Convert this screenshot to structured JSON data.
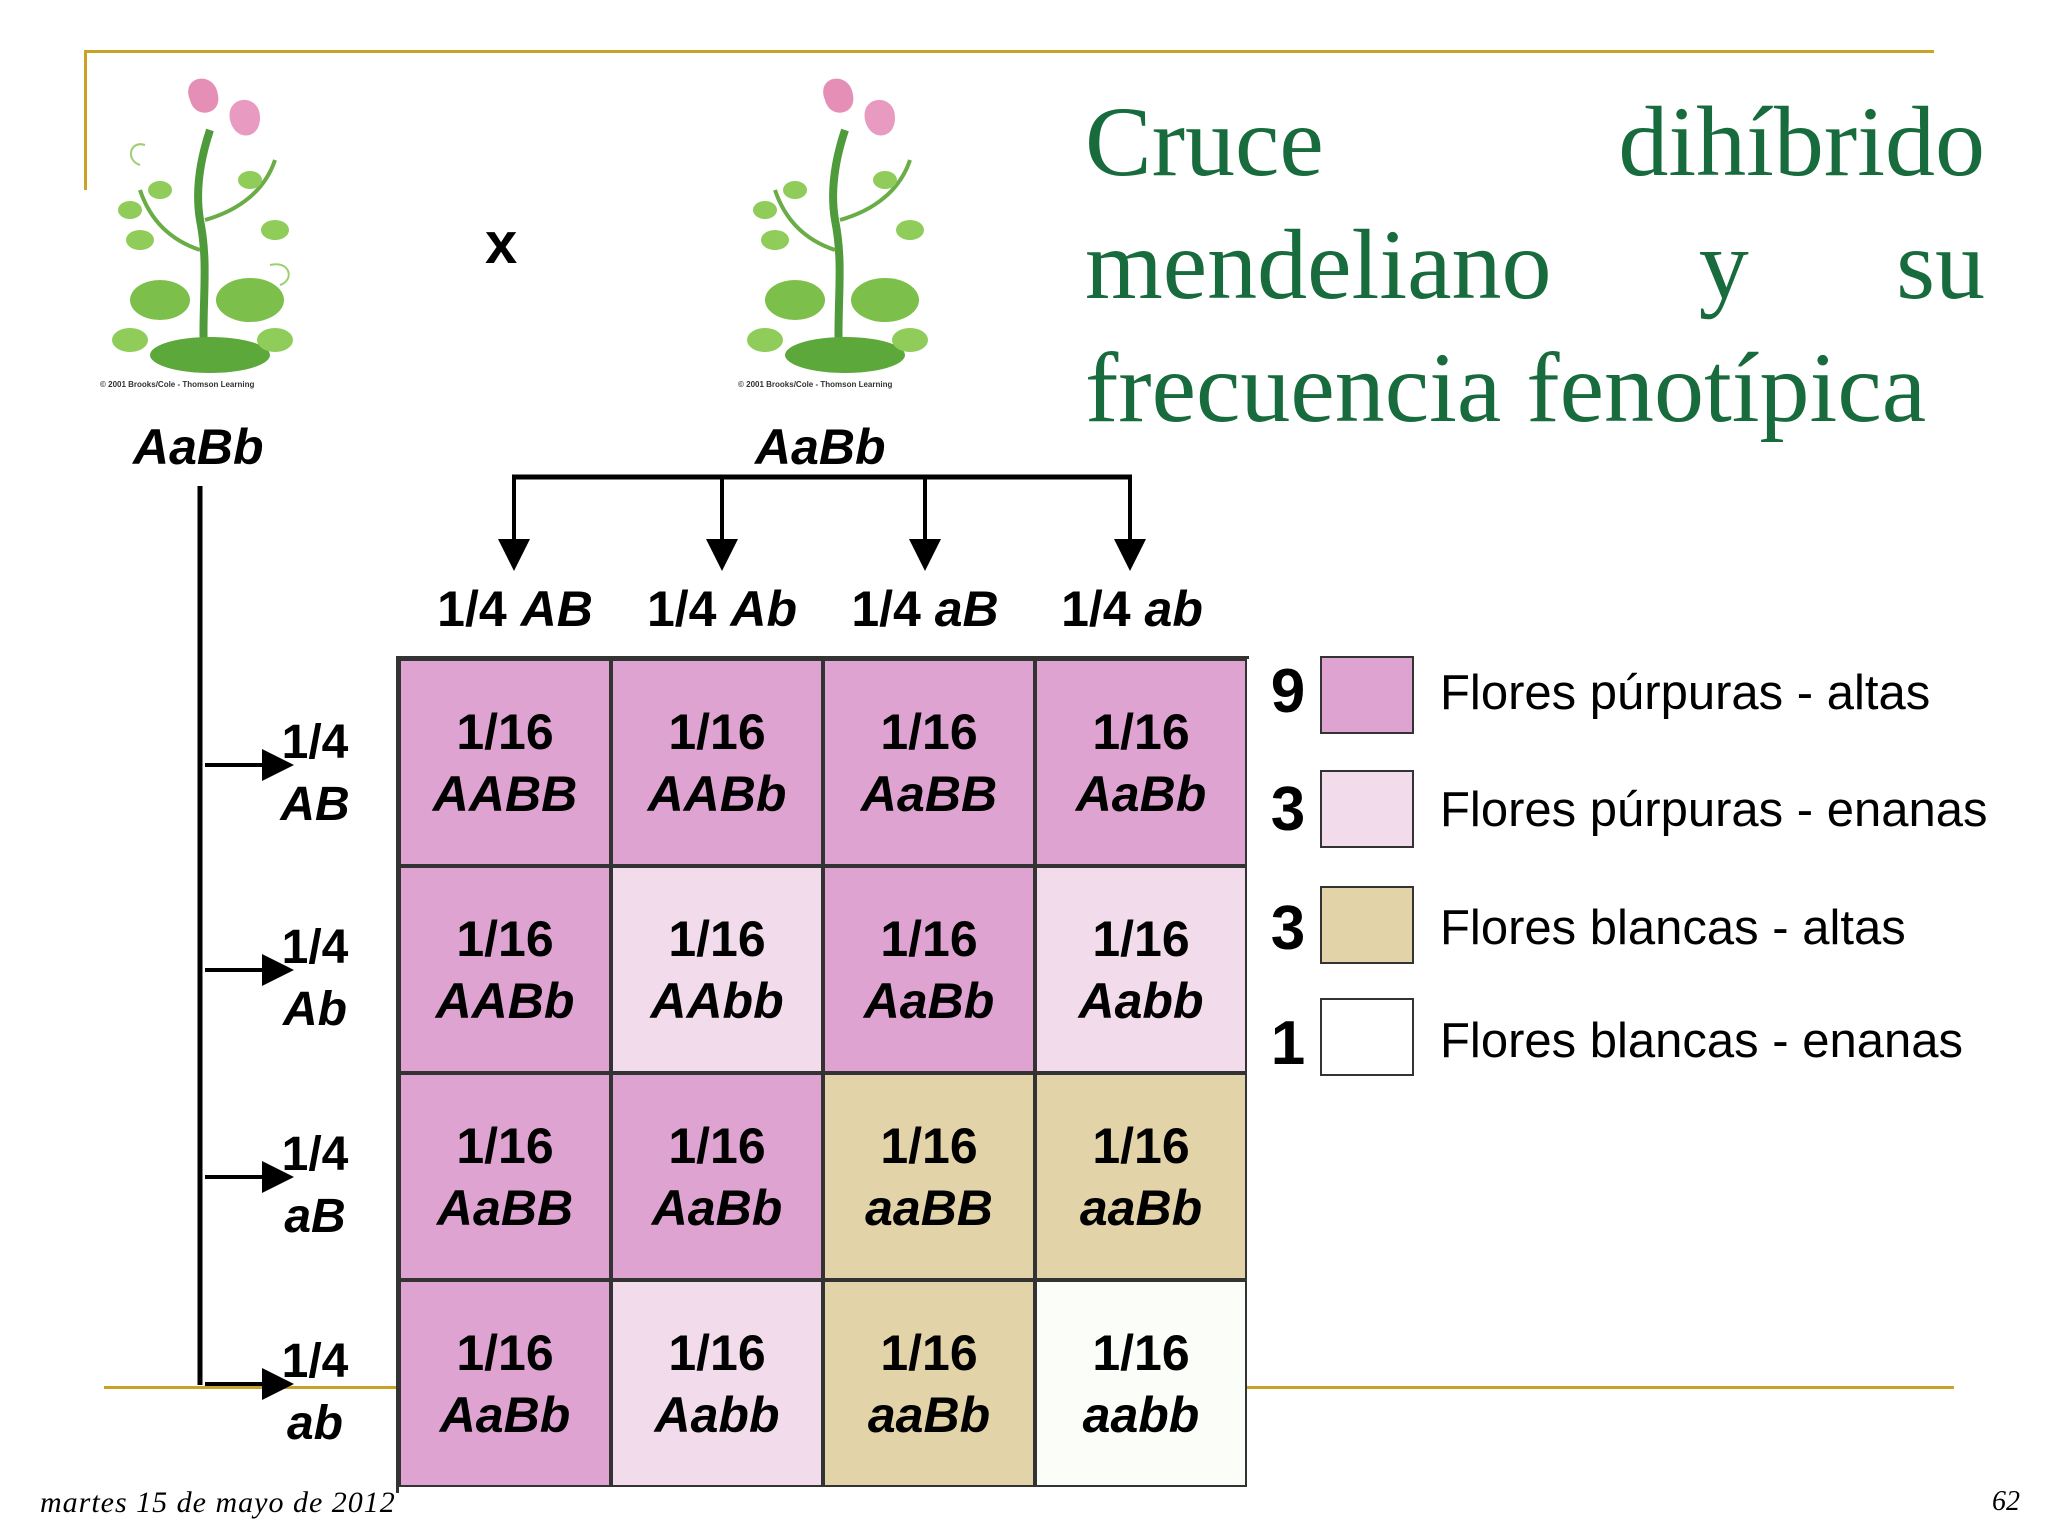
{
  "title": {
    "line1": [
      "Cruce",
      "dihíbrido"
    ],
    "line2": [
      "mendeliano",
      "y",
      "su"
    ],
    "line3": "frecuencia fenotípica"
  },
  "parents": {
    "left_genotype": "AaBb",
    "right_genotype": "AaBb",
    "cross_symbol": "x",
    "image_credit": "© 2001 Brooks/Cole - Thomson Learning"
  },
  "gametes": [
    {
      "freq": "1/4",
      "allele": "AB"
    },
    {
      "freq": "1/4",
      "allele": "Ab"
    },
    {
      "freq": "1/4",
      "allele": "aB"
    },
    {
      "freq": "1/4",
      "allele": "ab"
    }
  ],
  "punnett": [
    [
      {
        "freq": "1/16",
        "genotype": "AABB",
        "phenotype": "purple-tall"
      },
      {
        "freq": "1/16",
        "genotype": "AABb",
        "phenotype": "purple-tall"
      },
      {
        "freq": "1/16",
        "genotype": "AaBB",
        "phenotype": "purple-tall"
      },
      {
        "freq": "1/16",
        "genotype": "AaBb",
        "phenotype": "purple-tall"
      }
    ],
    [
      {
        "freq": "1/16",
        "genotype": "AABb",
        "phenotype": "purple-tall"
      },
      {
        "freq": "1/16",
        "genotype": "AAbb",
        "phenotype": "purple-dwarf"
      },
      {
        "freq": "1/16",
        "genotype": "AaBb",
        "phenotype": "purple-tall"
      },
      {
        "freq": "1/16",
        "genotype": "Aabb",
        "phenotype": "purple-dwarf"
      }
    ],
    [
      {
        "freq": "1/16",
        "genotype": "AaBB",
        "phenotype": "purple-tall"
      },
      {
        "freq": "1/16",
        "genotype": "AaBb",
        "phenotype": "purple-tall"
      },
      {
        "freq": "1/16",
        "genotype": "aaBB",
        "phenotype": "white-tall"
      },
      {
        "freq": "1/16",
        "genotype": "aaBb",
        "phenotype": "white-tall"
      }
    ],
    [
      {
        "freq": "1/16",
        "genotype": "AaBb",
        "phenotype": "purple-tall"
      },
      {
        "freq": "1/16",
        "genotype": "Aabb",
        "phenotype": "purple-dwarf"
      },
      {
        "freq": "1/16",
        "genotype": "aaBb",
        "phenotype": "white-tall"
      },
      {
        "freq": "1/16",
        "genotype": "aabb",
        "phenotype": "white-dwarf"
      }
    ]
  ],
  "legend": [
    {
      "count": "9",
      "label": "Flores púrpuras - altas",
      "color": "#dea3d1"
    },
    {
      "count": "3",
      "label": "Flores púrpuras - enanas",
      "color": "#f2dcec"
    },
    {
      "count": "3",
      "label": "Flores blancas - altas",
      "color": "#e3d3a8"
    },
    {
      "count": "1",
      "label": "Flores blancas - enanas",
      "color": "#ffffff"
    }
  ],
  "colors": {
    "purple-tall": "#dea3d1",
    "purple-dwarf": "#f2dcec",
    "white-tall": "#e3d3a8",
    "white-dwarf": "#fbfdf9",
    "title": "#186b3c",
    "rule": "#c9a227"
  },
  "footer": {
    "date": "martes 15 de mayo de 2012",
    "page": "62"
  }
}
